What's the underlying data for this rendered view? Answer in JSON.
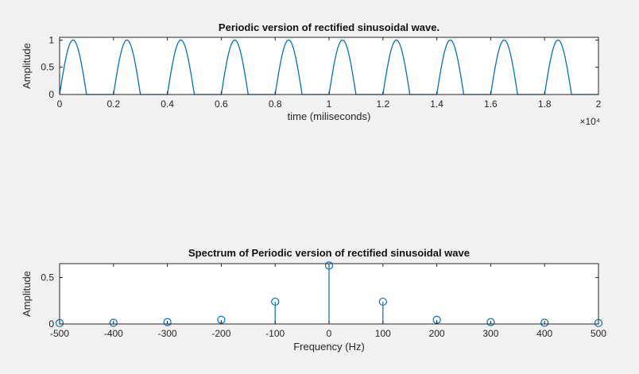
{
  "figure": {
    "background_color": "#f1f1f1",
    "axes_background_color": "#ffffff",
    "axes_color": "#262626",
    "line_color": "#0072BD"
  },
  "chart_data": [
    {
      "type": "line",
      "title": "Periodic version of rectified sinusoidal wave.",
      "xlabel": "time (miliseconds)",
      "ylabel": "Amplitude",
      "x_exponent_label": "×10⁴",
      "xlim": [
        0,
        20000
      ],
      "ylim": [
        0,
        1.05
      ],
      "xtick_values": [
        0,
        2000,
        4000,
        6000,
        8000,
        10000,
        12000,
        14000,
        16000,
        18000,
        20000
      ],
      "xtick_labels": [
        "0",
        "0.2",
        "0.4",
        "0.6",
        "0.8",
        "1",
        "1.2",
        "1.4",
        "1.6",
        "1.8",
        "2"
      ],
      "ytick_values": [
        0,
        0.5,
        1
      ],
      "ytick_labels": [
        "0",
        "0.5",
        "1"
      ],
      "color": "#0072BD",
      "grid": false,
      "waveform": {
        "kind": "periodic_half_sine_pulses",
        "period": 2000,
        "pulse_width": 1000,
        "amplitude": 1,
        "num_periods": 10,
        "pulse_peak_times": [
          500,
          2500,
          4500,
          6500,
          8500,
          10500,
          12500,
          14500,
          16500,
          18500
        ]
      }
    },
    {
      "type": "stem",
      "title": "Spectrum of Periodic version of rectified sinusoidal wave",
      "xlabel": "Frequency (Hz)",
      "ylabel": "Amplitude",
      "xlim": [
        -500,
        500
      ],
      "ylim": [
        0,
        0.65
      ],
      "xtick_values": [
        -500,
        -400,
        -300,
        -200,
        -100,
        0,
        100,
        200,
        300,
        400,
        500
      ],
      "xtick_labels": [
        "-500",
        "-400",
        "-300",
        "-200",
        "-100",
        "0",
        "100",
        "200",
        "300",
        "400",
        "500"
      ],
      "ytick_values": [
        0,
        0.5
      ],
      "ytick_labels": [
        "0",
        "0.5"
      ],
      "color": "#0072BD",
      "marker": "open-circle",
      "grid": false,
      "points": [
        {
          "x": -500,
          "y": 0.01
        },
        {
          "x": -400,
          "y": 0.013
        },
        {
          "x": -300,
          "y": 0.02
        },
        {
          "x": -200,
          "y": 0.045
        },
        {
          "x": -100,
          "y": 0.24
        },
        {
          "x": 0,
          "y": 0.63
        },
        {
          "x": 100,
          "y": 0.24
        },
        {
          "x": 200,
          "y": 0.045
        },
        {
          "x": 300,
          "y": 0.02
        },
        {
          "x": 400,
          "y": 0.013
        },
        {
          "x": 500,
          "y": 0.01
        }
      ]
    }
  ]
}
